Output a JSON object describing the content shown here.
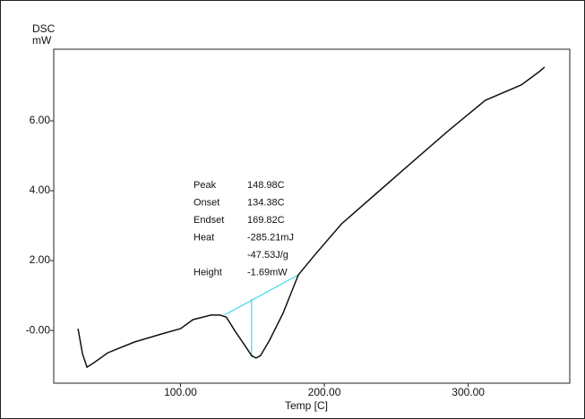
{
  "chart_data": {
    "type": "line",
    "y_label": "DSC",
    "y_unit": "mW",
    "x_label": "Temp  [C]",
    "x": [
      28.75,
      31.9,
      35,
      40,
      49.4,
      68.1,
      86.9,
      100,
      108.75,
      121.25,
      127.5,
      131.9,
      138.1,
      144.4,
      149.4,
      152.5,
      155.6,
      161.9,
      171.25,
      181.9,
      193.1,
      211.9,
      236.9,
      261.9,
      286.9,
      311.9,
      336.9,
      349.4,
      353.1
    ],
    "values": [
      0.05,
      -0.67,
      -1.05,
      -0.92,
      -0.64,
      -0.33,
      -0.1,
      0.05,
      0.31,
      0.44,
      0.44,
      0.38,
      -0.03,
      -0.41,
      -0.72,
      -0.79,
      -0.72,
      -0.28,
      0.49,
      1.59,
      2.15,
      3.05,
      3.95,
      4.85,
      5.74,
      6.59,
      7.03,
      7.41,
      7.54
    ],
    "color": "#111111",
    "baseline": {
      "x": [
        130.6,
        181.9
      ],
      "values": [
        0.44,
        1.59
      ],
      "color": "#3fd8e6"
    },
    "peak_line": {
      "x": [
        149.4,
        149.4
      ],
      "values": [
        0.9,
        -0.79
      ],
      "color": "#3fd8e6"
    },
    "xlim": [
      11.9,
      370.6
    ],
    "ylim": [
      -1.51,
      8.05
    ],
    "xticks": [
      {
        "value": 100,
        "label": "100.00"
      },
      {
        "value": 200,
        "label": "200.00"
      },
      {
        "value": 300,
        "label": "300.00"
      }
    ],
    "yticks": [
      {
        "value": 0,
        "label": "-0.00"
      },
      {
        "value": 2,
        "label": "2.00"
      },
      {
        "value": 4,
        "label": "4.00"
      },
      {
        "value": 6,
        "label": "6.00"
      }
    ],
    "grid": false,
    "results": [
      {
        "label": "Peak",
        "lines": [
          "148.98C"
        ]
      },
      {
        "label": "Onset",
        "lines": [
          "134.38C"
        ]
      },
      {
        "label": "Endset",
        "lines": [
          "169.82C"
        ]
      },
      {
        "label": "Heat",
        "lines": [
          "-285.21mJ",
          "-47.53J/g"
        ]
      },
      {
        "label": "Height",
        "lines": [
          "-1.69mW"
        ]
      }
    ]
  }
}
